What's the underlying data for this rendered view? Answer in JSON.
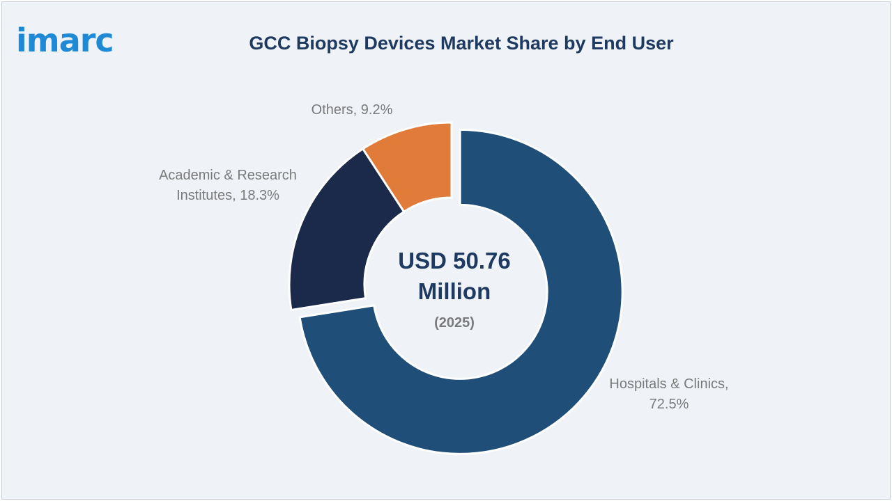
{
  "brand": {
    "logo_text": "imarc",
    "logo_color": "#1e8ad6"
  },
  "chart_data": {
    "type": "pie",
    "title": "GCC Biopsy Devices Market Share by End User",
    "variant": "donut",
    "center_text": {
      "line1": "USD 50.76",
      "line2": "Million",
      "line3": "(2025)"
    },
    "slices": [
      {
        "label_lines": [
          "Hospitals & Clinics,",
          "72.5%"
        ],
        "value": 72.5,
        "color": "#1f4e79",
        "exploded": true
      },
      {
        "label_lines": [
          "Academic & Research",
          "Institutes, 18.3%"
        ],
        "value": 18.3,
        "color": "#1b2a4a",
        "exploded": false
      },
      {
        "label_lines": [
          "Others, 9.2%"
        ],
        "value": 9.2,
        "color": "#e07b39",
        "exploded": false
      }
    ]
  }
}
